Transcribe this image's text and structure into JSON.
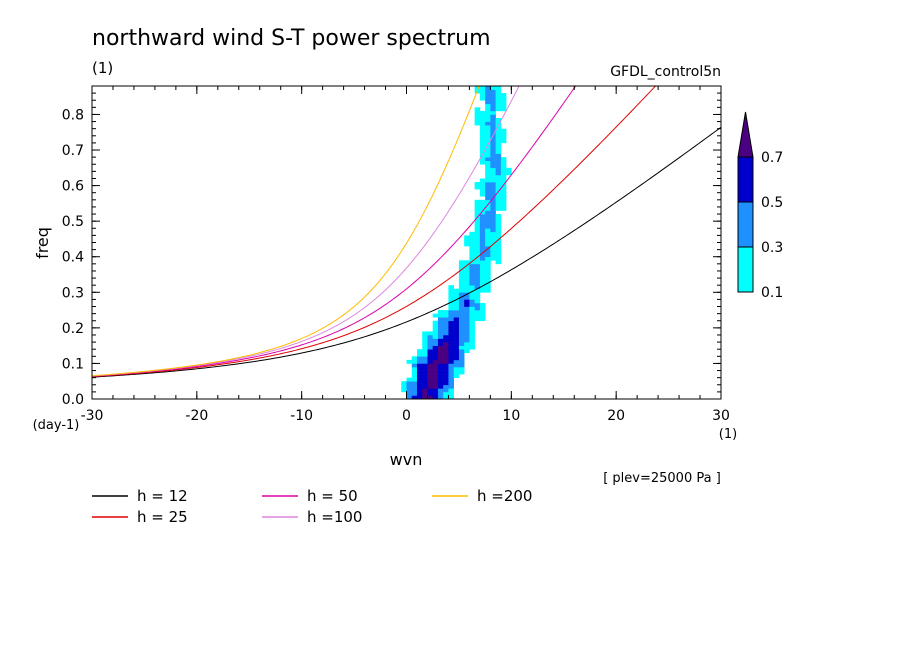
{
  "title": "northward wind S-T power spectrum",
  "title_unit": "(1)",
  "dataset": "GFDL_control5n",
  "footnote": "[ plev=25000 Pa ]",
  "x_unit": "(1)",
  "y_unit": "(day-1)",
  "chart_data": {
    "type": "heatmap",
    "title": "northward wind S-T power spectrum",
    "xlabel": "wvn",
    "ylabel": "freq",
    "xlim": [
      -30,
      30
    ],
    "ylim": [
      0,
      0.88
    ],
    "x_ticks": [
      "-30",
      "-20",
      "-10",
      "0",
      "10",
      "20",
      "30"
    ],
    "y_ticks": [
      "0.0",
      "0.1",
      "0.2",
      "0.3",
      "0.4",
      "0.5",
      "0.6",
      "0.7",
      "0.8"
    ],
    "x_tick_values": [
      -30,
      -20,
      -10,
      0,
      10,
      20,
      30
    ],
    "y_tick_values": [
      0,
      0.1,
      0.2,
      0.3,
      0.4,
      0.5,
      0.6,
      0.7,
      0.8
    ],
    "colorbar": {
      "levels": [
        "0.1",
        "0.3",
        "0.5",
        "0.7"
      ],
      "level_values": [
        0.1,
        0.3,
        0.5,
        0.7
      ],
      "colors": [
        "#00ffff",
        "#1e90ff",
        "#0000cd",
        "#4b0082"
      ],
      "extend": "max"
    },
    "dispersion_curves": [
      {
        "name": "h = 12",
        "h": 12,
        "color": "#000000"
      },
      {
        "name": "h = 25",
        "h": 25,
        "color": "#e00000"
      },
      {
        "name": "h = 50",
        "h": 50,
        "color": "#dd00aa"
      },
      {
        "name": "h =100",
        "h": 100,
        "color": "#dd88dd"
      },
      {
        "name": "h =200",
        "h": 200,
        "color": "#ffbb00"
      }
    ],
    "power_ridge": [
      {
        "freq": 0.02,
        "wvn_center": 2,
        "halfwidth": 2.2,
        "level": 0.7
      },
      {
        "freq": 0.1,
        "wvn_center": 3,
        "halfwidth": 2.6,
        "level": 0.7
      },
      {
        "freq": 0.2,
        "wvn_center": 4.5,
        "halfwidth": 2.2,
        "level": 0.5
      },
      {
        "freq": 0.3,
        "wvn_center": 6,
        "halfwidth": 1.8,
        "level": 0.3
      },
      {
        "freq": 0.45,
        "wvn_center": 7.5,
        "halfwidth": 1.6,
        "level": 0.3
      },
      {
        "freq": 0.63,
        "wvn_center": 8.5,
        "halfwidth": 1.4,
        "level": 0.3
      },
      {
        "freq": 0.8,
        "wvn_center": 8,
        "halfwidth": 1.2,
        "level": 0.3
      }
    ]
  },
  "legend": [
    {
      "label": "h = 12",
      "color": "#000000"
    },
    {
      "label": "h = 25",
      "color": "#e00000"
    },
    {
      "label": "h = 50",
      "color": "#dd00aa"
    },
    {
      "label": "h =100",
      "color": "#dd88dd"
    },
    {
      "label": "h =200",
      "color": "#ffbb00"
    }
  ]
}
